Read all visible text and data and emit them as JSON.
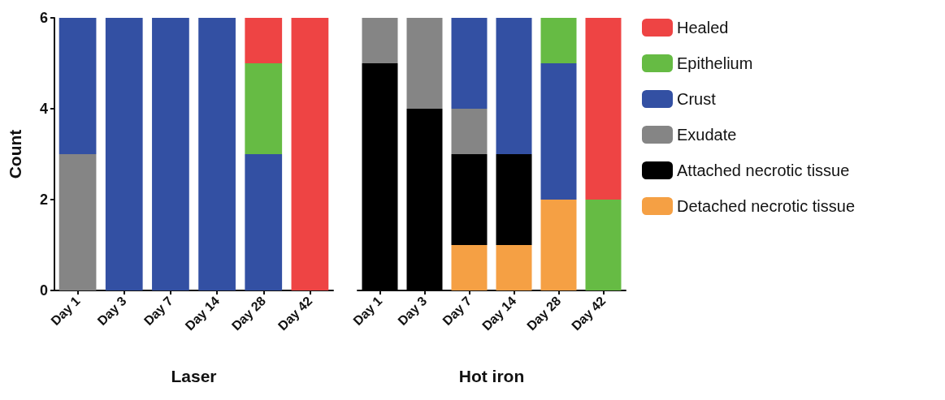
{
  "chart_data": [
    {
      "type": "bar",
      "stacked": true,
      "xlabel": "Laser",
      "ylabel": "Count",
      "categories": [
        "Day 1",
        "Day 3",
        "Day 7",
        "Day 14",
        "Day 28",
        "Day 42"
      ],
      "ylim": [
        0,
        6
      ],
      "yticks": [
        0,
        2,
        4,
        6
      ],
      "series": [
        {
          "color": "#f5a044",
          "values": [
            0,
            0,
            0,
            0,
            0,
            0
          ]
        },
        {
          "color": "#000000",
          "values": [
            0,
            0,
            0,
            0,
            0,
            0
          ]
        },
        {
          "color": "#858585",
          "values": [
            3,
            0,
            0,
            0,
            0,
            0
          ]
        },
        {
          "color": "#3350a3",
          "values": [
            3,
            6,
            6,
            6,
            3,
            0
          ]
        },
        {
          "color": "#66bb44",
          "values": [
            0,
            0,
            0,
            0,
            2,
            0
          ]
        },
        {
          "color": "#ee4444",
          "values": [
            0,
            0,
            0,
            0,
            1,
            6
          ]
        }
      ]
    },
    {
      "type": "bar",
      "stacked": true,
      "xlabel": "Hot iron",
      "categories": [
        "Day 1",
        "Day 3",
        "Day 7",
        "Day 14",
        "Day 28",
        "Day 42"
      ],
      "ylim": [
        0,
        6
      ],
      "yticks": [
        0,
        2,
        4,
        6
      ],
      "tick_labels": "x",
      "legend": "right",
      "series": [
        {
          "name": "Detached necrotic tissue",
          "color": "#f5a044",
          "values": [
            0,
            0,
            1,
            1,
            2,
            0
          ]
        },
        {
          "name": "Attached necrotic tissue",
          "color": "#000000",
          "values": [
            5,
            4,
            2,
            2,
            0,
            0
          ]
        },
        {
          "name": "Exudate",
          "color": "#858585",
          "values": [
            1,
            2,
            1,
            0,
            0,
            0
          ]
        },
        {
          "name": "Crust",
          "color": "#3350a3",
          "values": [
            0,
            0,
            2,
            3,
            3,
            0
          ]
        },
        {
          "name": "Epithelium",
          "color": "#66bb44",
          "values": [
            0,
            0,
            0,
            0,
            1,
            2
          ]
        },
        {
          "name": "Healed",
          "color": "#ee4444",
          "values": [
            0,
            0,
            0,
            0,
            0,
            4
          ]
        }
      ]
    }
  ]
}
